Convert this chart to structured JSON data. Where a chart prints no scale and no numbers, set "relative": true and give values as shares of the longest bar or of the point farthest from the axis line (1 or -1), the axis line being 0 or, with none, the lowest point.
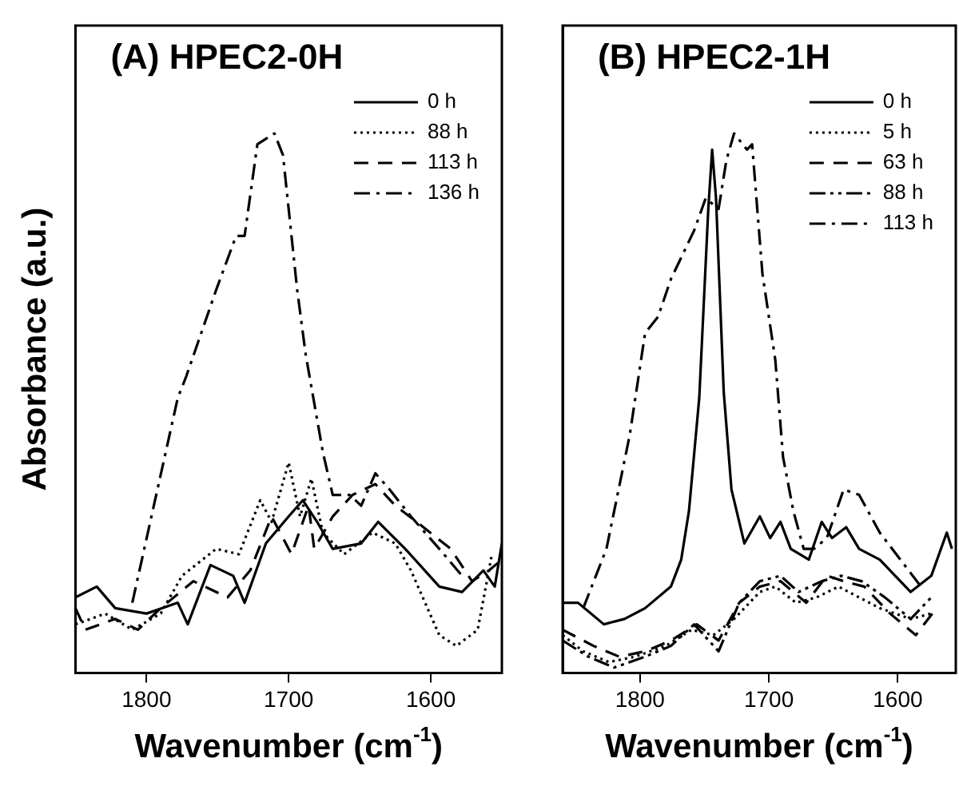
{
  "chart_data": [
    {
      "type": "line",
      "title": "(A) HPEC2-0H",
      "xlabel": "Wavenumber (cm$^{-1}$)",
      "ylabel": "Absorbance (a.u.)",
      "relative": true,
      "xlim": [
        1850,
        1550
      ],
      "xticks": [
        1800,
        1700,
        1600
      ],
      "grid": false,
      "legend": "top right",
      "marker": "none",
      "series": [
        {
          "name": "0 h",
          "color": "#000000",
          "line_style": "solid",
          "x": [
            1850,
            1835,
            1822,
            1800,
            1778,
            1771,
            1755,
            1739,
            1731,
            1716,
            1700,
            1690,
            1680,
            1669,
            1649,
            1637,
            1618,
            1594,
            1578,
            1563,
            1555,
            1550
          ],
          "values": [
            0.14,
            0.16,
            0.12,
            0.11,
            0.13,
            0.09,
            0.2,
            0.18,
            0.13,
            0.24,
            0.29,
            0.32,
            0.28,
            0.23,
            0.24,
            0.28,
            0.23,
            0.16,
            0.15,
            0.19,
            0.16,
            0.24
          ]
        },
        {
          "name": "88 h",
          "color": "#000000",
          "line_style": "dotted",
          "x": [
            1850,
            1829,
            1810,
            1790,
            1775,
            1751,
            1735,
            1720,
            1712,
            1700,
            1692,
            1684,
            1676,
            1661,
            1641,
            1625,
            1614,
            1594,
            1582,
            1567,
            1557
          ],
          "values": [
            0.09,
            0.11,
            0.08,
            0.11,
            0.18,
            0.23,
            0.22,
            0.32,
            0.28,
            0.39,
            0.29,
            0.36,
            0.26,
            0.22,
            0.26,
            0.24,
            0.19,
            0.07,
            0.05,
            0.08,
            0.22
          ]
        },
        {
          "name": "113 h",
          "color": "#000000",
          "line_style": "dashed",
          "x": [
            1850,
            1843,
            1822,
            1806,
            1790,
            1767,
            1743,
            1727,
            1712,
            1698,
            1686,
            1682,
            1669,
            1655,
            1639,
            1625,
            1610,
            1586,
            1571,
            1559,
            1550
          ],
          "values": [
            0.12,
            0.08,
            0.1,
            0.08,
            0.12,
            0.17,
            0.14,
            0.19,
            0.29,
            0.22,
            0.31,
            0.23,
            0.29,
            0.33,
            0.35,
            0.31,
            0.28,
            0.23,
            0.17,
            0.19,
            0.21
          ]
        },
        {
          "name": "136 h",
          "color": "#000000",
          "line_style": "dashdot",
          "x": [
            1810,
            1778,
            1772,
            1751,
            1737,
            1731,
            1722,
            1710,
            1704,
            1694,
            1688,
            1676,
            1669,
            1657,
            1649,
            1639,
            1629,
            1614,
            1594,
            1578
          ],
          "values": [
            0.13,
            0.51,
            0.55,
            0.71,
            0.81,
            0.81,
            0.98,
            1.0,
            0.96,
            0.71,
            0.59,
            0.41,
            0.33,
            0.33,
            0.31,
            0.37,
            0.34,
            0.29,
            0.23,
            0.18
          ]
        }
      ]
    },
    {
      "type": "line",
      "title": "(B) HPEC2-1H",
      "xlabel": "Wavenumber (cm$^{-1}$)",
      "relative": true,
      "xlim": [
        1860,
        1555
      ],
      "xticks": [
        1800,
        1700,
        1600
      ],
      "grid": false,
      "legend": "top right",
      "marker": "none",
      "series": [
        {
          "name": "0 h",
          "color": "#000000",
          "line_style": "solid",
          "x": [
            1860,
            1848,
            1828,
            1812,
            1796,
            1776,
            1768,
            1762,
            1754,
            1747,
            1744,
            1741,
            1735,
            1729,
            1719,
            1707,
            1699,
            1691,
            1683,
            1669,
            1659,
            1651,
            1640,
            1630,
            1614,
            1590,
            1574,
            1562,
            1558
          ],
          "values": [
            0.13,
            0.13,
            0.09,
            0.1,
            0.12,
            0.16,
            0.21,
            0.3,
            0.51,
            0.86,
            0.97,
            0.88,
            0.52,
            0.34,
            0.24,
            0.29,
            0.25,
            0.28,
            0.23,
            0.21,
            0.28,
            0.25,
            0.27,
            0.23,
            0.21,
            0.15,
            0.18,
            0.26,
            0.23
          ]
        },
        {
          "name": "5 h",
          "color": "#000000",
          "line_style": "dotted",
          "x": [
            1860,
            1844,
            1824,
            1804,
            1780,
            1760,
            1743,
            1727,
            1707,
            1695,
            1679,
            1663,
            1646,
            1630,
            1614,
            1590,
            1574
          ],
          "values": [
            0.07,
            0.04,
            0.02,
            0.03,
            0.05,
            0.08,
            0.07,
            0.1,
            0.15,
            0.16,
            0.13,
            0.14,
            0.16,
            0.14,
            0.12,
            0.1,
            0.11
          ]
        },
        {
          "name": "63 h",
          "color": "#000000",
          "line_style": "dashed",
          "x": [
            1860,
            1836,
            1816,
            1796,
            1776,
            1756,
            1739,
            1723,
            1707,
            1691,
            1671,
            1655,
            1642,
            1626,
            1606,
            1586,
            1570
          ],
          "values": [
            0.08,
            0.05,
            0.03,
            0.04,
            0.06,
            0.09,
            0.06,
            0.13,
            0.16,
            0.17,
            0.13,
            0.18,
            0.17,
            0.16,
            0.11,
            0.07,
            0.12
          ]
        },
        {
          "name": "88 h",
          "color": "#000000",
          "line_style": "dashdotdot",
          "x": [
            1860,
            1840,
            1820,
            1796,
            1776,
            1758,
            1739,
            1723,
            1707,
            1691,
            1677,
            1659,
            1644,
            1628,
            1610,
            1590,
            1574
          ],
          "values": [
            0.06,
            0.03,
            0.01,
            0.03,
            0.05,
            0.09,
            0.04,
            0.13,
            0.17,
            0.18,
            0.15,
            0.17,
            0.18,
            0.17,
            0.14,
            0.1,
            0.14
          ]
        },
        {
          "name": "113 h",
          "color": "#000000",
          "line_style": "dashdot",
          "x": [
            1844,
            1826,
            1808,
            1796,
            1786,
            1776,
            1758,
            1749,
            1739,
            1733,
            1727,
            1717,
            1713,
            1705,
            1695,
            1689,
            1681,
            1673,
            1665,
            1655,
            1642,
            1630,
            1614,
            1598,
            1582
          ],
          "values": [
            0.12,
            0.23,
            0.44,
            0.63,
            0.66,
            0.73,
            0.82,
            0.88,
            0.86,
            0.95,
            1.0,
            0.97,
            0.98,
            0.74,
            0.58,
            0.4,
            0.3,
            0.23,
            0.23,
            0.25,
            0.34,
            0.33,
            0.26,
            0.21,
            0.16
          ]
        }
      ]
    }
  ]
}
